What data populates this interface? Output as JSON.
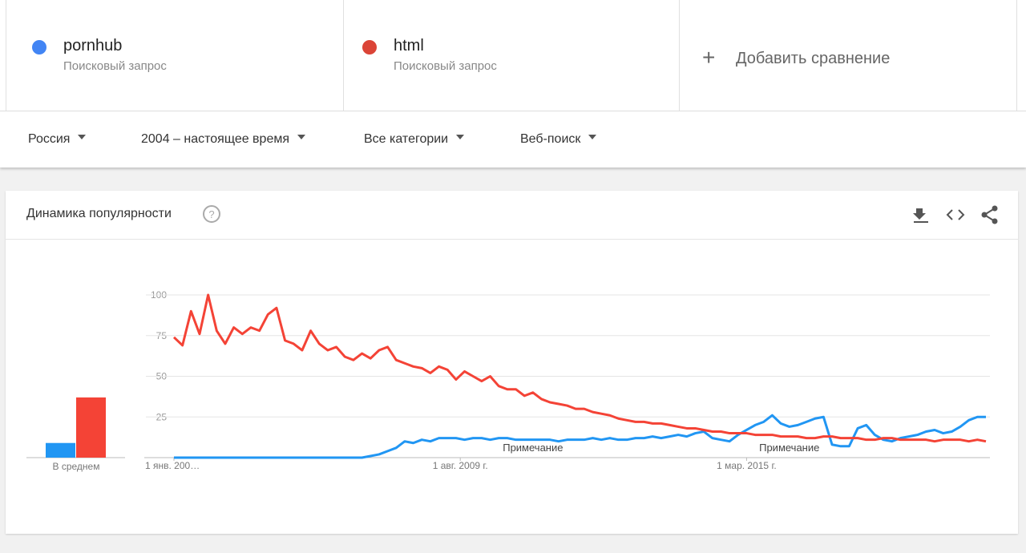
{
  "header": {
    "subtitle": "Поисковый запрос",
    "add": "Добавить сравнение"
  },
  "filters": [
    "Россия",
    "2004 – настоящее время",
    "Все категории",
    "Веб-поиск"
  ],
  "card": {
    "title": "Динамика популярности"
  },
  "chart_data": {
    "type": "line",
    "categories": [
      null,
      null,
      null,
      null,
      null,
      null,
      null,
      null,
      null,
      null,
      null,
      null,
      null,
      null,
      null,
      null,
      null,
      null,
      null,
      null,
      null,
      null,
      null,
      null,
      null,
      null,
      null,
      null,
      null,
      null,
      null,
      null,
      null,
      null,
      null,
      null,
      null,
      null,
      null,
      null,
      null,
      null,
      null,
      null,
      null,
      null,
      null,
      null,
      null,
      null,
      null,
      null,
      null,
      null,
      null,
      null,
      null,
      null,
      null,
      null,
      null,
      null,
      null,
      null,
      null,
      null,
      null,
      null,
      null,
      null,
      null,
      null,
      null,
      null,
      null,
      null,
      null,
      null,
      null,
      null,
      null,
      null,
      null,
      null,
      null,
      null,
      null,
      null,
      null,
      null,
      null,
      null,
      null,
      null,
      null,
      null
    ],
    "xticks": [
      {
        "value": 0,
        "label": "1 янв. 200…"
      },
      {
        "value": 33.5,
        "label": "1 авг. 2009 г."
      },
      {
        "value": 67,
        "label": "1 мар. 2015 г."
      }
    ],
    "ylim": [
      0,
      100
    ],
    "yticks": [
      25,
      50,
      75,
      100
    ],
    "grid": true,
    "series": [
      {
        "name": "pornhub",
        "color": "#2196f3",
        "dot_color": "#4285f4",
        "values": [
          0,
          0,
          0,
          0,
          0,
          0,
          0,
          0,
          0,
          0,
          0,
          0,
          0,
          0,
          0,
          0,
          0,
          0,
          0,
          0,
          0,
          0,
          0,
          1,
          2,
          4,
          6,
          10,
          9,
          11,
          10,
          12,
          12,
          12,
          11,
          12,
          12,
          11,
          12,
          12,
          11,
          11,
          11,
          11,
          11,
          10,
          11,
          11,
          11,
          12,
          11,
          12,
          11,
          11,
          12,
          12,
          13,
          12,
          13,
          14,
          13,
          15,
          16,
          12,
          11,
          10,
          14,
          17,
          20,
          22,
          26,
          21,
          19,
          20,
          22,
          24,
          25,
          8,
          7,
          7,
          18,
          20,
          14,
          11,
          10,
          12,
          13,
          14,
          16,
          17,
          15,
          16,
          19,
          23,
          25,
          25
        ]
      },
      {
        "name": "html",
        "color": "#f44336",
        "dot_color": "#db4437",
        "values": [
          74,
          69,
          90,
          76,
          100,
          78,
          70,
          80,
          76,
          80,
          78,
          88,
          92,
          72,
          70,
          66,
          78,
          70,
          66,
          68,
          62,
          60,
          64,
          61,
          66,
          68,
          60,
          58,
          56,
          55,
          52,
          56,
          54,
          48,
          53,
          50,
          47,
          50,
          44,
          42,
          42,
          38,
          40,
          36,
          34,
          33,
          32,
          30,
          30,
          28,
          27,
          26,
          24,
          23,
          22,
          22,
          21,
          21,
          20,
          19,
          18,
          18,
          17,
          16,
          16,
          15,
          15,
          15,
          14,
          14,
          14,
          13,
          13,
          13,
          12,
          12,
          13,
          13,
          12,
          12,
          12,
          11,
          11,
          12,
          12,
          11,
          11,
          11,
          11,
          10,
          11,
          11,
          11,
          10,
          11,
          10
        ]
      }
    ],
    "annotations": [
      {
        "label": "Примечание",
        "x": 42
      },
      {
        "label": "Примечание",
        "x": 72
      }
    ],
    "averages": {
      "label": "В среднем",
      "values": [
        9,
        37
      ]
    }
  }
}
